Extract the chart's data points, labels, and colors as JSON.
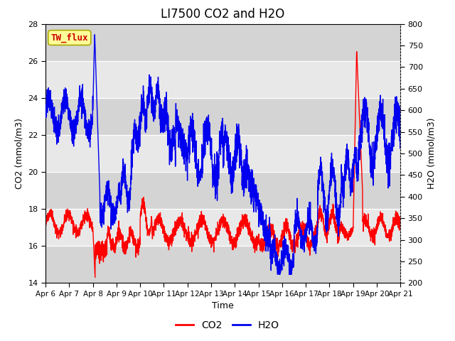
{
  "title": "LI7500 CO2 and H2O",
  "xlabel": "Time",
  "ylabel_left": "CO2 (mmol/m3)",
  "ylabel_right": "H2O (mmol/m3)",
  "co2_ylim": [
    14,
    28
  ],
  "h2o_ylim": [
    200,
    800
  ],
  "xtick_labels": [
    "Apr 6",
    "Apr 7",
    "Apr 8",
    "Apr 9",
    "Apr 10",
    "Apr 11",
    "Apr 12",
    "Apr 13",
    "Apr 14",
    "Apr 15",
    "Apr 16",
    "Apr 17",
    "Apr 18",
    "Apr 19",
    "Apr 20",
    "Apr 21"
  ],
  "co2_color": "#ff0000",
  "h2o_color": "#0000ee",
  "legend_label_co2": "CO2",
  "legend_label_h2o": "H2O",
  "annotation_text": "TW_flux",
  "annotation_color": "#cc0000",
  "annotation_bg": "#ffff99",
  "annotation_edge": "#aaaa00",
  "plot_bg_light": "#e8e8e8",
  "plot_bg_dark": "#d8d8d8",
  "title_fontsize": 12,
  "axis_fontsize": 9,
  "tick_fontsize": 8,
  "legend_fontsize": 10,
  "linewidth_co2": 1.0,
  "linewidth_h2o": 1.0
}
